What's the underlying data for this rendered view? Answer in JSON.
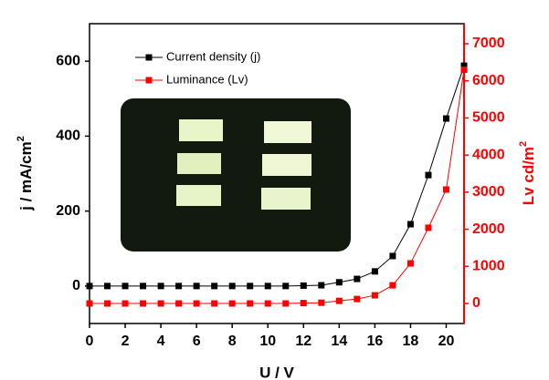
{
  "chart_data": {
    "type": "line",
    "xlabel": "U / V",
    "ylabel": [
      "j / mA/cm",
      "2"
    ],
    "y2label": [
      "Lv cd/m",
      "2"
    ],
    "x": [
      0,
      1,
      2,
      3,
      4,
      5,
      6,
      7,
      8,
      9,
      10,
      11,
      12,
      13,
      14,
      15,
      16,
      17,
      18,
      19,
      20,
      21
    ],
    "xlim": [
      0,
      21
    ],
    "xticks": [
      0,
      2,
      4,
      6,
      8,
      10,
      12,
      14,
      16,
      18,
      20
    ],
    "ylim": [
      -100,
      700
    ],
    "yticks": [
      0,
      200,
      400,
      600
    ],
    "y2lim": [
      -540,
      7540
    ],
    "y2ticks": [
      0,
      1000,
      2000,
      3000,
      4000,
      5000,
      6000,
      7000
    ],
    "legend": "upper left",
    "series": [
      {
        "name": "Current density (j)",
        "color": "#000000",
        "values": [
          0,
          0,
          0,
          0,
          0,
          0,
          0,
          0,
          0,
          0,
          0,
          0,
          1,
          2,
          10,
          19,
          39,
          80,
          165,
          296,
          447,
          588
        ]
      },
      {
        "name": "Luminance (Lv)",
        "color": "#ff0000",
        "axis": "y2",
        "values": [
          0,
          0,
          0,
          0,
          0,
          0,
          0,
          0,
          0,
          0,
          0,
          0,
          10,
          20,
          70,
          120,
          220,
          490,
          1080,
          2040,
          3070,
          6300
        ]
      }
    ]
  }
}
